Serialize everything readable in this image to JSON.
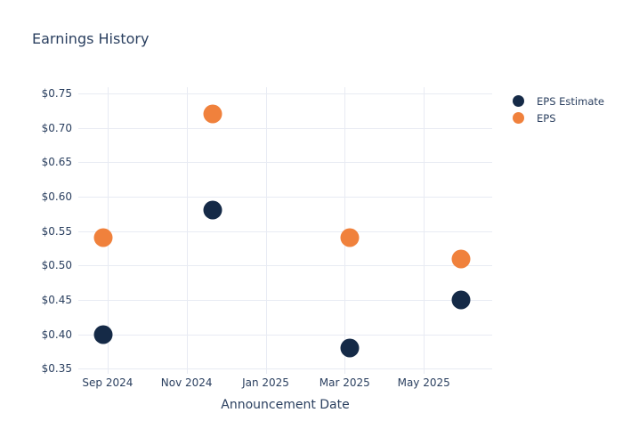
{
  "colors": {
    "background": "#ffffff",
    "text": "#2a3f5f",
    "grid": "#e8ebf3",
    "eps_estimate": "#152a47",
    "eps": "#f0813c"
  },
  "chart_data": {
    "type": "scatter",
    "title": "Earnings History",
    "xlabel": "Announcement Date",
    "ylabel": "",
    "grid": true,
    "legend_position": "right",
    "x_axis": {
      "unit": "months_from_sep_2024",
      "range": [
        -0.74,
        9.73
      ],
      "ticks": [
        {
          "label": "Sep 2024",
          "value": 0
        },
        {
          "label": "Nov 2024",
          "value": 2
        },
        {
          "label": "Jan 2025",
          "value": 4
        },
        {
          "label": "Mar 2025",
          "value": 6
        },
        {
          "label": "May 2025",
          "value": 8
        }
      ]
    },
    "y_axis": {
      "unit": "usd_per_share",
      "range": [
        0.349,
        0.759
      ],
      "ticks": [
        {
          "label": "$0.35",
          "value": 0.35
        },
        {
          "label": "$0.40",
          "value": 0.4
        },
        {
          "label": "$0.45",
          "value": 0.45
        },
        {
          "label": "$0.50",
          "value": 0.5
        },
        {
          "label": "$0.55",
          "value": 0.55
        },
        {
          "label": "$0.60",
          "value": 0.6
        },
        {
          "label": "$0.65",
          "value": 0.65
        },
        {
          "label": "$0.70",
          "value": 0.7
        },
        {
          "label": "$0.75",
          "value": 0.75
        }
      ]
    },
    "series": [
      {
        "name": "EPS Estimate",
        "color": "#152a47",
        "marker": "circle",
        "points": [
          {
            "x": -0.11,
            "y": 0.4
          },
          {
            "x": 2.66,
            "y": 0.58
          },
          {
            "x": 6.13,
            "y": 0.38
          },
          {
            "x": 8.93,
            "y": 0.45
          }
        ]
      },
      {
        "name": "EPS",
        "color": "#f0813c",
        "marker": "circle",
        "points": [
          {
            "x": -0.11,
            "y": 0.54
          },
          {
            "x": 2.66,
            "y": 0.72
          },
          {
            "x": 6.13,
            "y": 0.54
          },
          {
            "x": 8.93,
            "y": 0.51
          }
        ]
      }
    ]
  }
}
